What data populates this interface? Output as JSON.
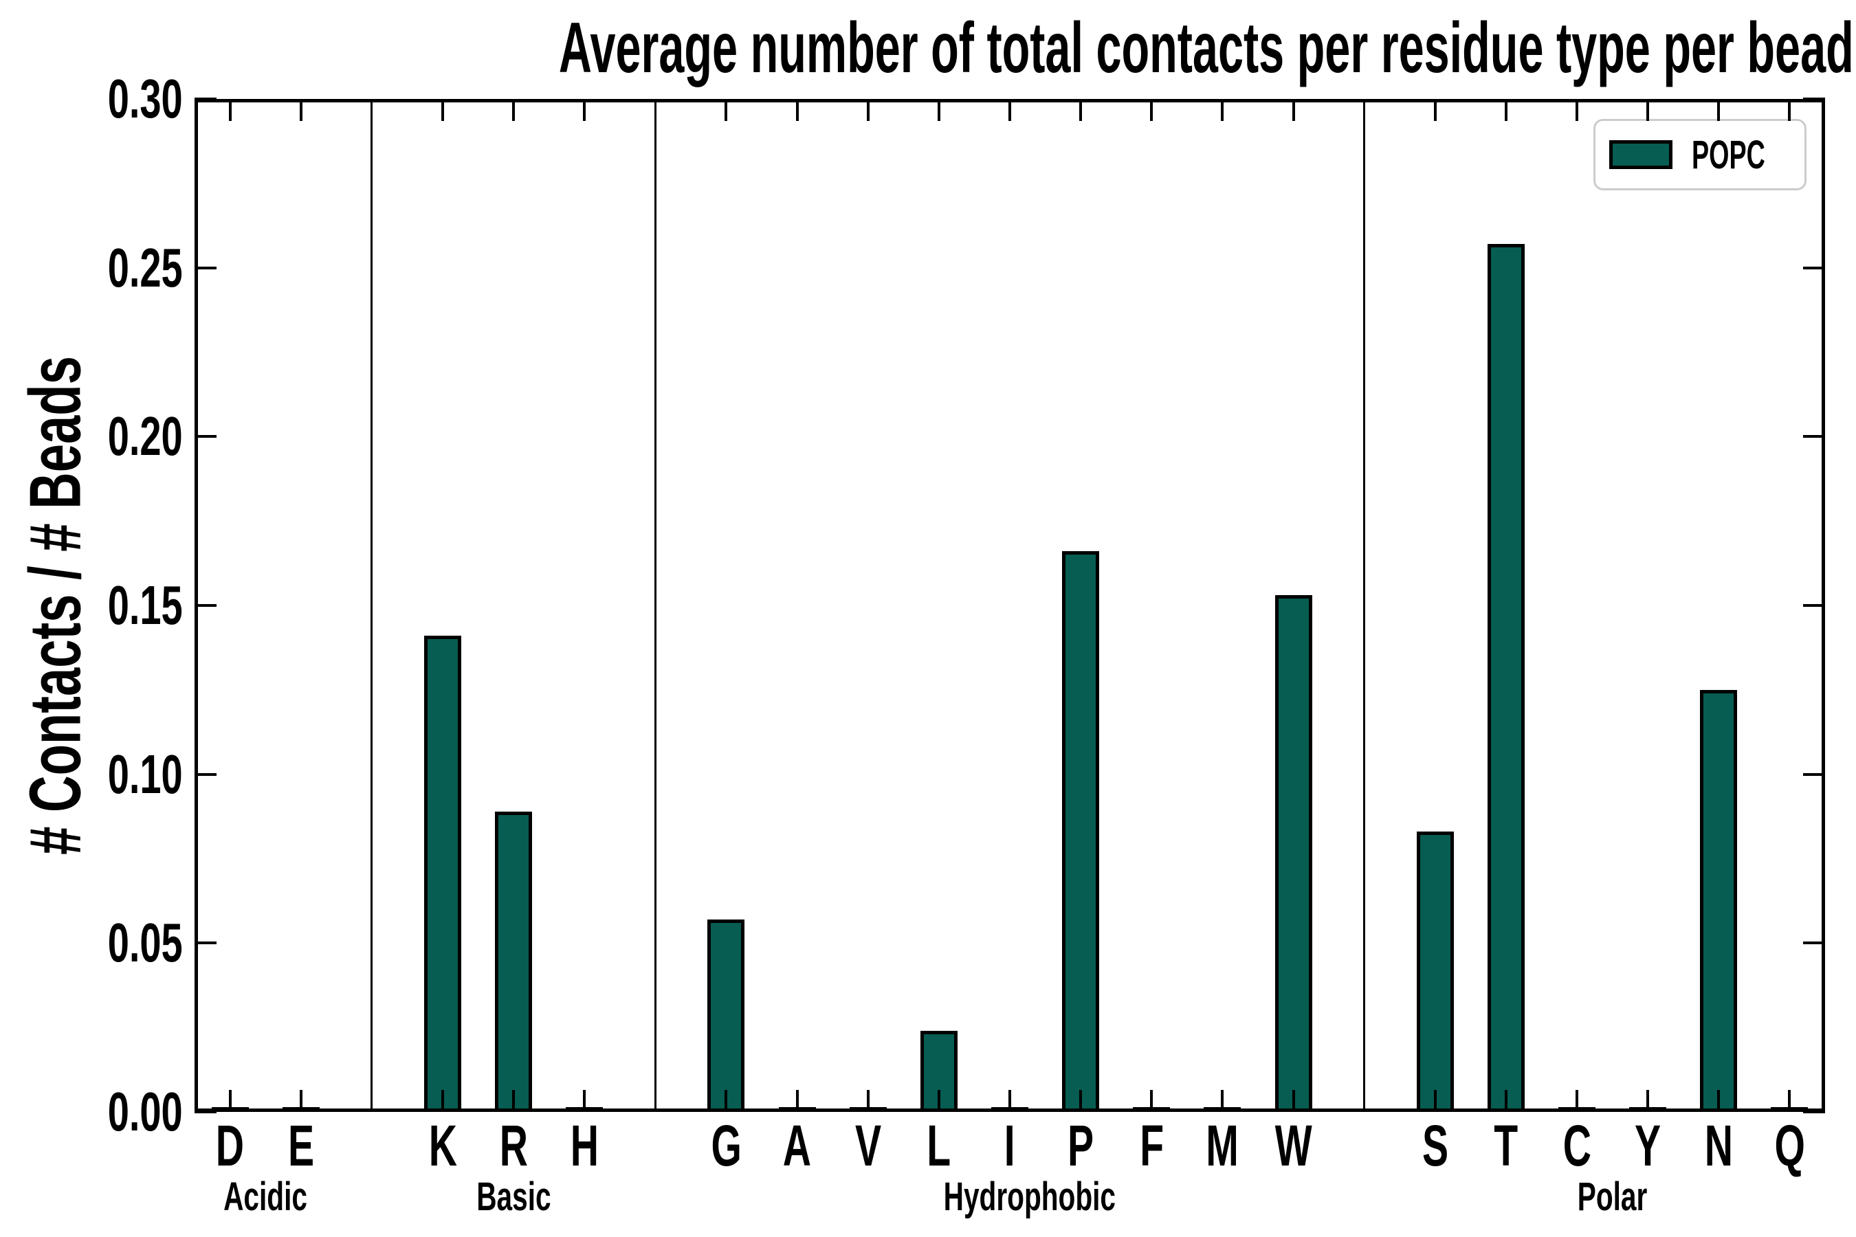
{
  "title": "Average number of total contacts per residue type per bead",
  "y_axis": {
    "label": "# Contacts / # Beads",
    "tick_labels": [
      "0.00",
      "0.05",
      "0.10",
      "0.15",
      "0.20",
      "0.25",
      "0.30"
    ]
  },
  "legend": {
    "entries": [
      {
        "label": "POPC",
        "color": "#075D52"
      }
    ],
    "position": "upper right"
  },
  "colors": {
    "bar_fill": "#075D52",
    "bar_edge": "#000000",
    "axis": "#000000",
    "text": "#000000",
    "legend_border": "#cccccc",
    "background": "#ffffff"
  },
  "chart_data": {
    "type": "bar",
    "title": "Average number of total contacts per residue type per bead",
    "xlabel": "",
    "ylabel": "# Contacts / # Beads",
    "ylim": [
      0,
      0.3
    ],
    "ytick_step": 0.05,
    "grid": false,
    "legend": {
      "entries": [
        {
          "label": "POPC",
          "color": "#075D52"
        }
      ],
      "position": "upper right"
    },
    "groups": [
      {
        "label": "Acidic",
        "categories": [
          "D",
          "E"
        ],
        "values": [
          0.0,
          0.0
        ]
      },
      {
        "label": "Basic",
        "categories": [
          "K",
          "R",
          "H"
        ],
        "values": [
          0.141,
          0.089,
          0.0
        ]
      },
      {
        "label": "Hydrophobic",
        "categories": [
          "G",
          "A",
          "V",
          "L",
          "I",
          "P",
          "F",
          "M",
          "W"
        ],
        "values": [
          0.057,
          0.0,
          0.0,
          0.024,
          0.0,
          0.166,
          0.0,
          0.0,
          0.153
        ]
      },
      {
        "label": "Polar",
        "categories": [
          "S",
          "T",
          "C",
          "Y",
          "N",
          "Q"
        ],
        "values": [
          0.083,
          0.257,
          0.0,
          0.0,
          0.125,
          0.0
        ]
      }
    ]
  }
}
